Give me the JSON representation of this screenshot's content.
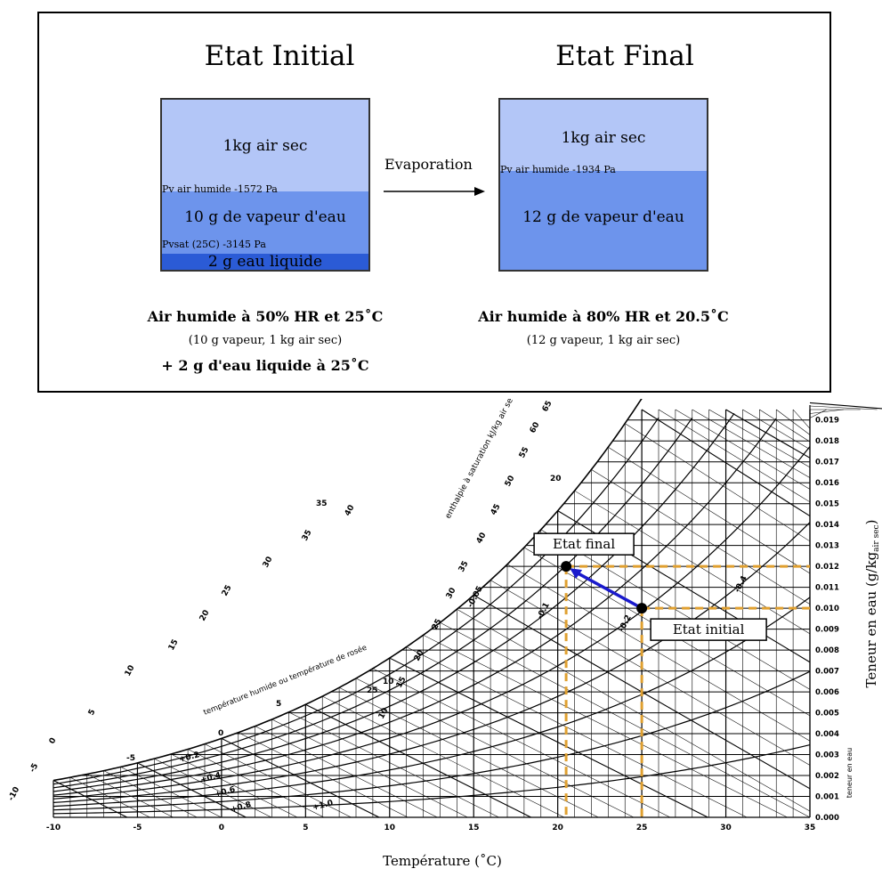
{
  "initial": {
    "title": "Etat Initial",
    "layer_air": "1kg air sec",
    "pv_label": "Pv air humide -1572 Pa",
    "layer_vapor": "10 g de vapeur d'eau",
    "pvsat_label": "Pvsat (25C) -3145 Pa",
    "layer_liquid": "2 g eau liquide",
    "caption_line1": "Air humide à 50% HR et 25˚C",
    "caption_line2": "(10 g vapeur, 1 kg air sec)",
    "caption_line3": "+ 2 g d'eau liquide à 25˚C"
  },
  "final": {
    "title": "Etat Final",
    "layer_air": "1kg air sec",
    "pv_label": "Pv air humide -1934 Pa",
    "layer_vapor": "12 g de vapeur d'eau",
    "caption_line1": "Air humide à 80% HR et 20.5˚C",
    "caption_line2": "(12 g vapeur, 1 kg air sec)"
  },
  "process_label": "Evaporation",
  "colors": {
    "air": "#b3c6f7",
    "vapor": "#6d94ec",
    "liquid": "#2b5bd6",
    "guide": "#e0a030",
    "process_arrow": "#1a1acc"
  },
  "chart_data": {
    "type": "psychrometric",
    "x_label": "Température (˚C)",
    "y_label": "Teneur en eau (g/kg",
    "y_label_sub": "air sec",
    "y_label_end": ")",
    "x_ticks": [
      "-10",
      "-5",
      "0",
      "5",
      "10",
      "15",
      "20",
      "25",
      "30",
      "35"
    ],
    "y_ticks": [
      "0.000",
      "0.001",
      "0.002",
      "0.003",
      "0.004",
      "0.005",
      "0.006",
      "0.007",
      "0.008",
      "0.009",
      "0.010",
      "0.011",
      "0.012",
      "0.013",
      "0.014",
      "0.015",
      "0.016",
      "0.017",
      "0.018",
      "0.019"
    ],
    "xlim": [
      -10,
      35
    ],
    "ylim": [
      0,
      0.0195
    ],
    "points": [
      {
        "name": "Etat initial",
        "x": 25,
        "y": 0.01
      },
      {
        "name": "Etat final",
        "x": 20.5,
        "y": 0.012
      }
    ],
    "enthalpy_axis_label": "enthalpie à saturation kJ/kg air sec",
    "enthalpy_ticks": [
      "10",
      "15",
      "20",
      "25",
      "30",
      "35",
      "40",
      "45",
      "50",
      "55",
      "60",
      "65"
    ],
    "left_scale_ticks": [
      "-10",
      "-5",
      "0",
      "5",
      "10",
      "15",
      "20",
      "25",
      "30",
      "35",
      "40"
    ],
    "dew_axis_label": "température humide ou température de rosée",
    "dew_ticks": [
      "-5",
      "0",
      "5",
      "10"
    ],
    "correction_labels": [
      "+0.2",
      "+0.4",
      "+0.6",
      "+0.8",
      "+1.0",
      "-0.05",
      "-0.1",
      "-0.2",
      "-0.4"
    ],
    "misc_labels": [
      "20",
      "35",
      "25"
    ],
    "right_axis_small_label": "teneur en eau"
  }
}
